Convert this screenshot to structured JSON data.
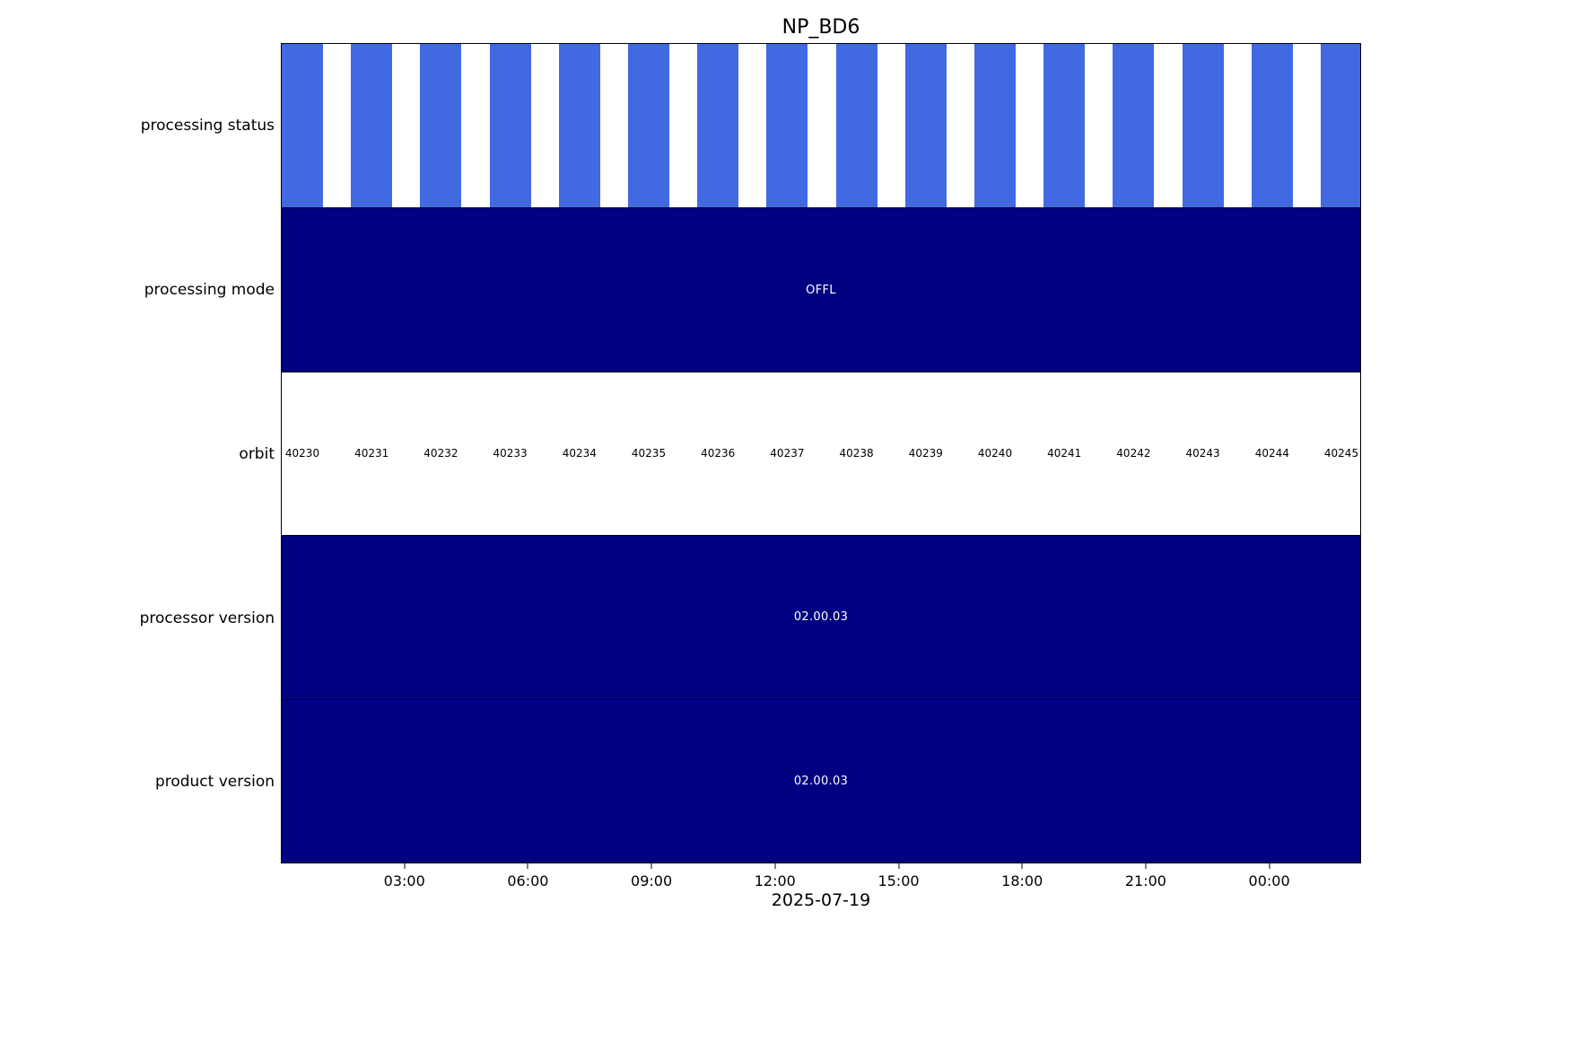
{
  "title": "NP_BD6",
  "x_axis": {
    "label": "2025-07-19",
    "ticks": [
      "03:00",
      "06:00",
      "09:00",
      "12:00",
      "15:00",
      "18:00",
      "21:00",
      "00:00"
    ]
  },
  "rows": {
    "processing_status": {
      "label": "processing status"
    },
    "processing_mode": {
      "label": "processing mode",
      "value": "OFFL"
    },
    "orbit": {
      "label": "orbit",
      "values": [
        "40230",
        "40231",
        "40232",
        "40233",
        "40234",
        "40235",
        "40236",
        "40237",
        "40238",
        "40239",
        "40240",
        "40241",
        "40242",
        "40243",
        "40244",
        "40245"
      ]
    },
    "processor_version": {
      "label": "processor version",
      "value": "02.00.03"
    },
    "product_version": {
      "label": "product version",
      "value": "02.00.03"
    }
  },
  "colors": {
    "status_bar": "#4169e1",
    "band": "#000080",
    "band_text": "#ffffff",
    "axis": "#000000"
  },
  "chart_data": {
    "type": "heatmap",
    "title": "NP_BD6",
    "xlabel": "2025-07-19",
    "x_tick_labels": [
      "03:00",
      "06:00",
      "09:00",
      "12:00",
      "15:00",
      "18:00",
      "21:00",
      "00:00"
    ],
    "legend_position": "none",
    "grid": false,
    "rows": [
      {
        "label": "processing status",
        "kind": "interval-bars",
        "color": "#4169e1",
        "bar_count": 16
      },
      {
        "label": "processing mode",
        "kind": "band",
        "value": "OFFL",
        "color": "#000080"
      },
      {
        "label": "orbit",
        "kind": "labels",
        "values": [
          "40230",
          "40231",
          "40232",
          "40233",
          "40234",
          "40235",
          "40236",
          "40237",
          "40238",
          "40239",
          "40240",
          "40241",
          "40242",
          "40243",
          "40244",
          "40245"
        ]
      },
      {
        "label": "processor version",
        "kind": "band",
        "value": "02.00.03",
        "color": "#000080"
      },
      {
        "label": "product version",
        "kind": "band",
        "value": "02.00.03",
        "color": "#000080"
      }
    ]
  }
}
